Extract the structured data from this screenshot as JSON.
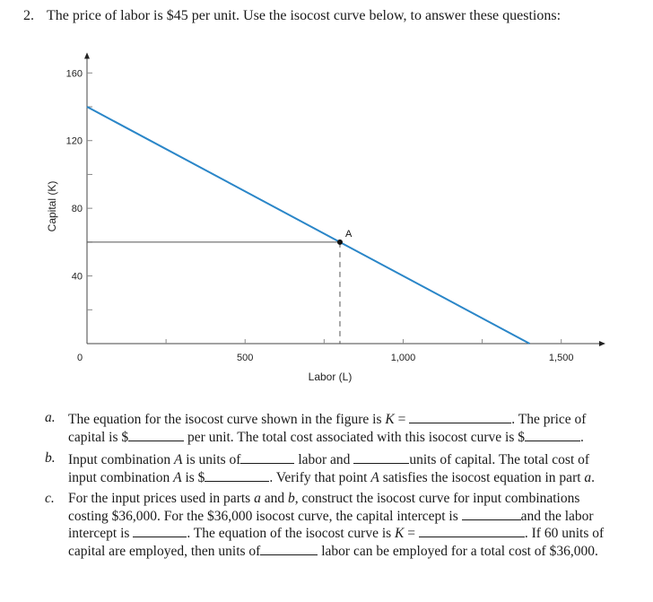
{
  "question": {
    "number": "2.",
    "text": "The price of labor is $45 per unit. Use the isocost curve below, to answer these questions:"
  },
  "chart_data": {
    "type": "line",
    "title": "",
    "xlabel": "Labor (L)",
    "ylabel": "Capital (K)",
    "xlim": [
      0,
      1600
    ],
    "ylim": [
      0,
      170
    ],
    "x_ticks": [
      0,
      500,
      1000,
      1500
    ],
    "x_tick_labels": [
      "0",
      "500",
      "1,000",
      "1,500"
    ],
    "y_ticks": [
      40,
      80,
      120,
      160
    ],
    "y_tick_labels": [
      "40",
      "80",
      "120",
      "160"
    ],
    "series": [
      {
        "x": [
          0,
          1400
        ],
        "y": [
          140,
          0
        ],
        "color": "#2a86c8"
      }
    ],
    "point": {
      "label": "A",
      "x": 800,
      "y": 60
    },
    "grid": false
  },
  "parts": {
    "a": {
      "letter": "a.",
      "l1_t1": "The equation for the isocost curve shown in the figure is ",
      "l1_var": "K",
      "l1_eq": " = ",
      "l1_t2": ". The price of",
      "l2_t1": "capital is $",
      "l2_t2": " per unit. The total cost associated with this isocost curve is $",
      "l2_t3": "."
    },
    "b": {
      "letter": "b.",
      "l1_t1": "Input combination ",
      "l1_var": "A",
      "l1_t2": " is units of",
      "l1_t3": " labor and ",
      "l1_t4": "units of capital. The total cost of",
      "l2_t1": "input combination ",
      "l2_var": "A",
      "l2_t2": " is $",
      "l2_t3": ". Verify that point ",
      "l2_var2": "A",
      "l2_t4": " satisfies the isocost equation in part ",
      "l2_var3": "a",
      "l2_t5": "."
    },
    "c": {
      "letter": "c.",
      "l1_t1": "For the input prices used in parts ",
      "l1_var1": "a",
      "l1_t2": " and ",
      "l1_var2": "b",
      "l1_t3": ", construct the isocost curve for input combinations",
      "l2_t1": "costing $36,000. For the $36,000 isocost curve, the capital intercept is ",
      "l2_t2": "and the labor",
      "l3_t1": "intercept is ",
      "l3_t2": ". The equation of the isocost curve is ",
      "l3_var": "K",
      "l3_eq": " = ",
      "l3_t3": ". If 60 units of",
      "l4_t1": "capital are employed, then units of",
      "l4_t2": " labor can be employed for a total cost of $36,000."
    }
  }
}
